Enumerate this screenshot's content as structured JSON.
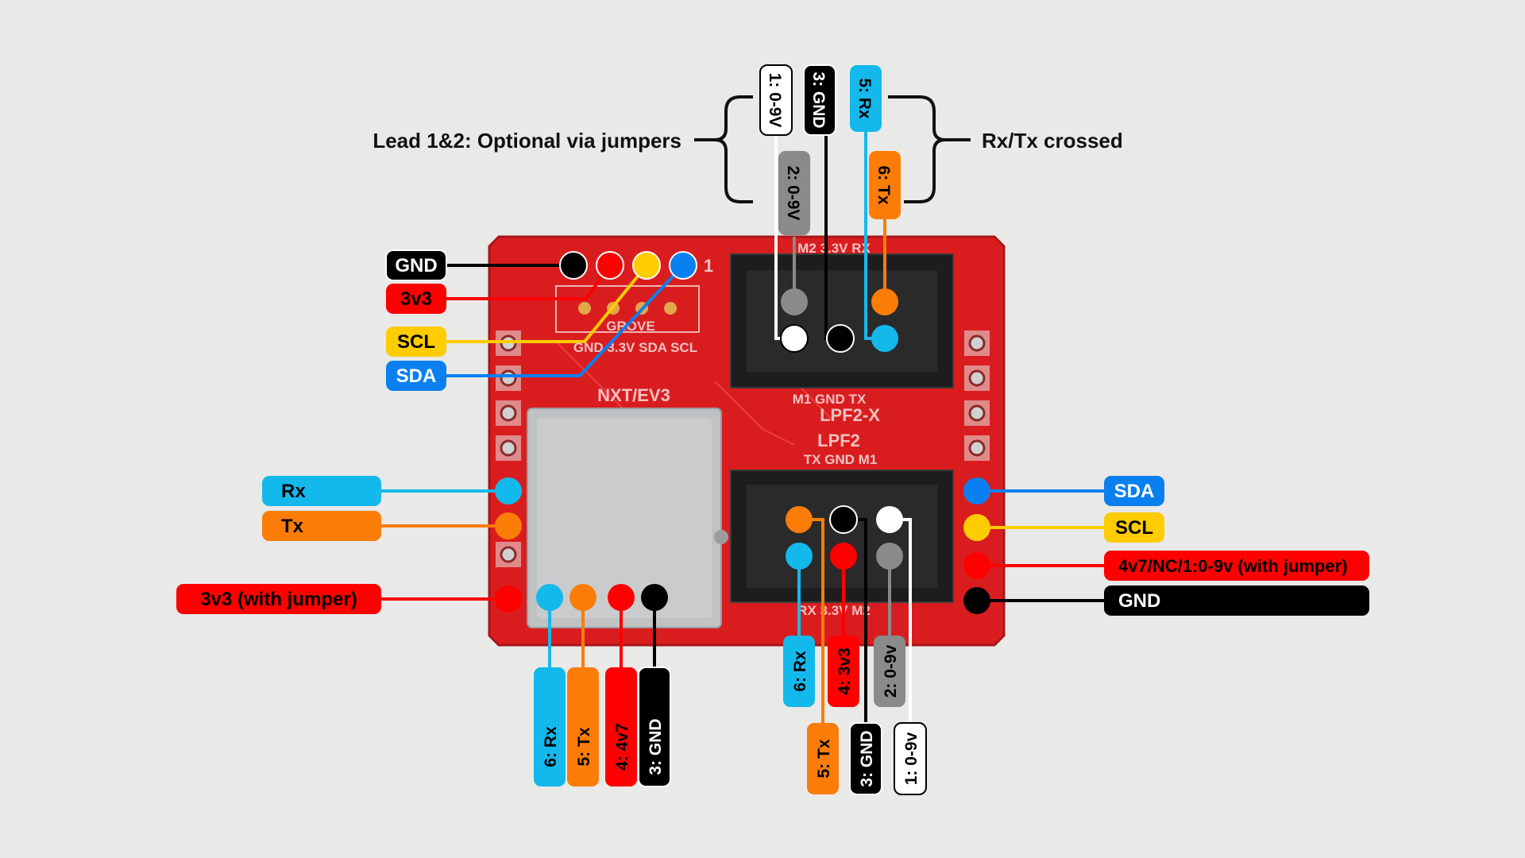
{
  "annotations": {
    "lead_optional": "Lead 1&2: Optional via jumpers",
    "rx_tx_crossed": "Rx/Tx crossed"
  },
  "board": {
    "silkscreen": {
      "grove": "GROVE",
      "grove_pins": "GND 3.3V SDA SCL",
      "pin_one": "1",
      "nxt_ev3": "NXT/EV3",
      "top_conn_top": "M2  3.3V  RX",
      "top_conn_bottom": "M1  GND  TX",
      "lpf2x": "LPF2-X",
      "lpf2": "LPF2",
      "bot_conn_top": "TX  GND  M1",
      "bot_conn_bottom": "RX  3.3V  M2"
    }
  },
  "grove_labels": {
    "gnd": "GND",
    "v3v3": "3v3",
    "scl": "SCL",
    "sda": "SDA"
  },
  "left_header_labels": {
    "rx": "Rx",
    "tx": "Tx",
    "v3v3_jumper": "3v3 (with jumper)"
  },
  "right_header_labels": {
    "sda": "SDA",
    "scl": "SCL",
    "v4v7": "4v7/NC/1:0-9v (with jumper)",
    "gnd": "GND"
  },
  "top_connector_labels": {
    "p1": "1: 0-9V",
    "p2": "2: 0-9V",
    "p3": "3: GND",
    "p5": "5: Rx",
    "p6": "6: Tx"
  },
  "nxt_labels": {
    "p6": "6: Rx",
    "p5": "5: Tx",
    "p4": "4: 4v7",
    "p3": "3: GND"
  },
  "bottom_connector_labels": {
    "p6": "6: Rx",
    "p4": "4: 3v3",
    "p2": "2: 0-9v",
    "p5": "5: Tx",
    "p3": "3: GND",
    "p1": "1: 0-9v"
  },
  "colors": {
    "background": "#e9e9e8",
    "board_red": "#d91d1f",
    "gnd_black": "#000000",
    "v3v3_red": "#ff0000",
    "scl_yellow": "#ffcc00",
    "sda_blue": "#0a80f0",
    "rx_cyan": "#14b9ec",
    "tx_orange": "#fb7d07",
    "motor_grey": "#7b7b7b",
    "white": "#ffffff"
  }
}
